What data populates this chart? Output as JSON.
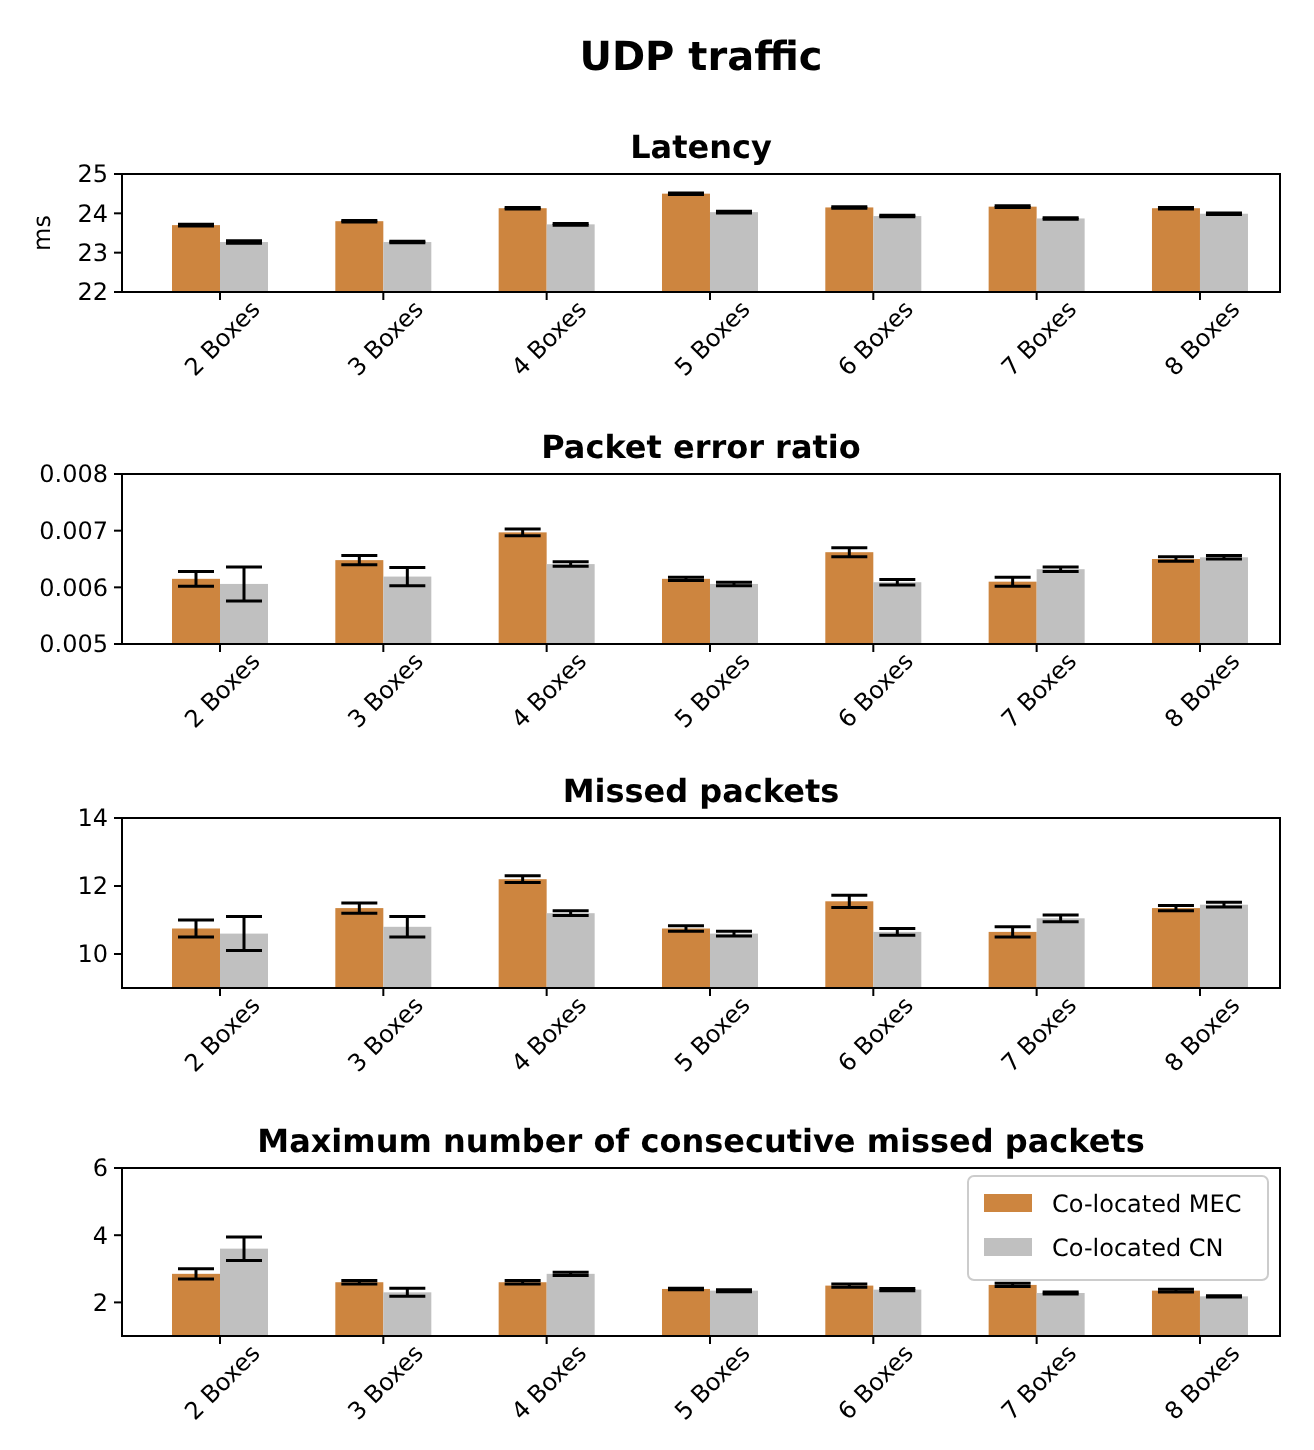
{
  "chart_data": [
    {
      "type": "bar",
      "title": "UDP traffic",
      "subtitle": "Latency",
      "ylabel": "ms",
      "categories": [
        "2 Boxes",
        "3 Boxes",
        "4 Boxes",
        "5 Boxes",
        "6 Boxes",
        "7 Boxes",
        "8 Boxes"
      ],
      "ylim": [
        22,
        25
      ],
      "yticks": [
        22,
        23,
        24,
        25
      ],
      "series": [
        {
          "color": "#cd853f",
          "values": [
            23.7,
            23.8,
            24.13,
            24.5,
            24.15,
            24.17,
            24.13
          ],
          "errors": [
            0.02,
            0.02,
            0.02,
            0.02,
            0.02,
            0.02,
            0.02
          ]
        },
        {
          "color": "#c0c0c0",
          "values": [
            23.27,
            23.27,
            23.72,
            24.03,
            23.93,
            23.87,
            23.99
          ],
          "errors": [
            0.03,
            0.02,
            0.02,
            0.02,
            0.02,
            0.02,
            0.02
          ]
        }
      ]
    },
    {
      "type": "bar",
      "title": "Packet error ratio",
      "categories": [
        "2 Boxes",
        "3 Boxes",
        "4 Boxes",
        "5 Boxes",
        "6 Boxes",
        "7 Boxes",
        "8 Boxes"
      ],
      "ylim": [
        0.005,
        0.008
      ],
      "yticks": [
        0.005,
        0.006,
        0.007,
        0.008
      ],
      "series": [
        {
          "color": "#cd853f",
          "values": [
            0.00615,
            0.00648,
            0.00697,
            0.00615,
            0.00662,
            0.0061,
            0.0065
          ],
          "errors": [
            0.00013,
            8e-05,
            6e-05,
            3e-05,
            8e-05,
            8e-05,
            4e-05
          ]
        },
        {
          "color": "#c0c0c0",
          "values": [
            0.00606,
            0.00619,
            0.00641,
            0.00606,
            0.00609,
            0.00632,
            0.00653
          ],
          "errors": [
            0.0003,
            0.00016,
            4e-05,
            3e-05,
            5e-05,
            4e-05,
            3e-05
          ]
        }
      ]
    },
    {
      "type": "bar",
      "title": "Missed packets",
      "categories": [
        "2 Boxes",
        "3 Boxes",
        "4 Boxes",
        "5 Boxes",
        "6 Boxes",
        "7 Boxes",
        "8 Boxes"
      ],
      "ylim": [
        9,
        14
      ],
      "yticks": [
        10,
        12,
        14
      ],
      "series": [
        {
          "color": "#cd853f",
          "values": [
            10.75,
            11.35,
            12.2,
            10.75,
            11.55,
            10.65,
            11.35
          ],
          "errors": [
            0.25,
            0.15,
            0.1,
            0.08,
            0.18,
            0.15,
            0.08
          ]
        },
        {
          "color": "#c0c0c0",
          "values": [
            10.6,
            10.8,
            11.2,
            10.6,
            10.65,
            11.05,
            11.45
          ],
          "errors": [
            0.5,
            0.3,
            0.07,
            0.07,
            0.1,
            0.1,
            0.07
          ]
        }
      ]
    },
    {
      "type": "bar",
      "title": "Maximum number of consecutive missed packets",
      "categories": [
        "2 Boxes",
        "3 Boxes",
        "4 Boxes",
        "5 Boxes",
        "6 Boxes",
        "7 Boxes",
        "8 Boxes"
      ],
      "ylim": [
        1,
        6
      ],
      "yticks": [
        2,
        4,
        6
      ],
      "legend": "top right",
      "series": [
        {
          "name": "Co-located MEC",
          "color": "#cd853f",
          "values": [
            2.85,
            2.6,
            2.6,
            2.4,
            2.5,
            2.52,
            2.35
          ],
          "errors": [
            0.15,
            0.05,
            0.05,
            0.02,
            0.05,
            0.05,
            0.04
          ]
        },
        {
          "name": "Co-located CN",
          "color": "#c0c0c0",
          "values": [
            3.6,
            2.3,
            2.85,
            2.35,
            2.38,
            2.28,
            2.18
          ],
          "errors": [
            0.35,
            0.12,
            0.05,
            0.03,
            0.03,
            0.03,
            0.02
          ]
        }
      ]
    }
  ]
}
